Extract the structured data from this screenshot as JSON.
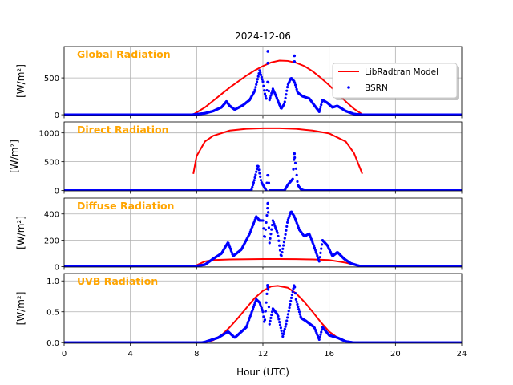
{
  "chart_data": {
    "type": "line",
    "title": "2024-12-06",
    "xlabel": "Hour (UTC)",
    "xlim": [
      0,
      24
    ],
    "xticks": [
      0,
      4,
      8,
      12,
      16,
      20,
      24
    ],
    "grid": true,
    "legend": {
      "entries": [
        "LibRadtran Model",
        "BSRN"
      ],
      "placement": "top-right",
      "panel": 0
    },
    "colors": {
      "model": "#ff0000",
      "bsrn": "#0000ff",
      "label": "#ffa500"
    },
    "panels": [
      {
        "label": "Global Radiation",
        "ylabel": "[W/m²]",
        "ylim": [
          -10,
          925
        ],
        "yticks": [
          0,
          500
        ],
        "model": {
          "x": [
            7.8,
            8.5,
            9,
            9.5,
            10,
            10.5,
            11,
            11.5,
            12,
            12.5,
            13,
            13.5,
            14,
            14.5,
            15,
            15.5,
            16,
            16.5,
            17,
            17.5,
            18
          ],
          "y": [
            5,
            100,
            190,
            280,
            370,
            450,
            530,
            600,
            660,
            710,
            735,
            730,
            705,
            660,
            590,
            500,
            400,
            290,
            180,
            80,
            5
          ]
        },
        "bsrn": {
          "x": [
            0,
            7.7,
            8.5,
            9,
            9.5,
            9.8,
            10,
            10.3,
            10.8,
            11.2,
            11.5,
            11.7,
            11.8,
            12,
            12.1,
            12.2,
            12.3,
            12.4,
            12.6,
            12.8,
            13.1,
            13.3,
            13.5,
            13.7,
            13.9,
            14.1,
            14.4,
            14.8,
            15.2,
            15.4,
            15.6,
            15.9,
            16.2,
            16.5,
            17,
            17.5,
            18,
            24
          ],
          "y": [
            0,
            0,
            20,
            50,
            100,
            180,
            120,
            70,
            130,
            200,
            320,
            500,
            600,
            450,
            300,
            220,
            500,
            200,
            350,
            250,
            80,
            150,
            400,
            500,
            450,
            300,
            250,
            220,
            100,
            40,
            200,
            160,
            100,
            120,
            50,
            10,
            0,
            0
          ],
          "spikes": {
            "x": [
              12.3,
              12.3,
              13.9,
              13.9
            ],
            "y": [
              860,
              700,
              800,
              720
            ]
          }
        }
      },
      {
        "label": "Direct Radiation",
        "ylabel": "[W/m²]",
        "ylim": [
          -5,
          1190
        ],
        "yticks": [
          0,
          500,
          1000
        ],
        "model": {
          "x": [
            7.8,
            8,
            8.5,
            9,
            10,
            11,
            12,
            13,
            14,
            15,
            16,
            17,
            17.5,
            18
          ],
          "y": [
            290,
            600,
            850,
            950,
            1040,
            1070,
            1080,
            1080,
            1070,
            1040,
            990,
            850,
            650,
            290
          ]
        },
        "bsrn": {
          "x": [
            0,
            11.3,
            11.5,
            11.7,
            11.9,
            12.1,
            12.2,
            12.3,
            12.4,
            13.3,
            13.5,
            13.8,
            13.9,
            14,
            14.1,
            14.3,
            14.5,
            24
          ],
          "y": [
            0,
            0,
            200,
            450,
            150,
            50,
            0,
            330,
            0,
            0,
            100,
            200,
            620,
            380,
            100,
            20,
            0,
            0
          ],
          "spikes": {
            "x": [
              11.7,
              13.9
            ],
            "y": [
              420,
              640
            ]
          }
        }
      },
      {
        "label": "Diffuse Radiation",
        "ylabel": "[W/m²]",
        "ylim": [
          -3,
          520
        ],
        "yticks": [
          0,
          200,
          400
        ],
        "model": {
          "x": [
            7.8,
            8.5,
            9,
            10,
            12,
            13,
            14,
            15,
            16,
            17,
            17.5,
            18
          ],
          "y": [
            0,
            40,
            50,
            55,
            58,
            58,
            57,
            55,
            50,
            30,
            15,
            0
          ]
        },
        "bsrn": {
          "x": [
            0,
            7.7,
            8.5,
            9,
            9.5,
            9.9,
            10.2,
            10.7,
            11.2,
            11.6,
            11.8,
            12,
            12.1,
            12.3,
            12.4,
            12.6,
            12.9,
            13.1,
            13.3,
            13.5,
            13.7,
            13.9,
            14.2,
            14.5,
            14.8,
            15.1,
            15.4,
            15.6,
            15.9,
            16.2,
            16.5,
            16.9,
            17.3,
            17.7,
            18,
            24
          ],
          "y": [
            0,
            0,
            15,
            60,
            100,
            185,
            80,
            130,
            250,
            380,
            350,
            350,
            200,
            470,
            180,
            350,
            250,
            70,
            200,
            350,
            420,
            380,
            280,
            230,
            250,
            150,
            40,
            200,
            160,
            80,
            110,
            60,
            25,
            10,
            0,
            0
          ],
          "spikes": {
            "x": [
              12.3
            ],
            "y": [
              480
            ]
          }
        }
      },
      {
        "label": "UVB Radiation",
        "ylabel": "[W/m²]",
        "ylim": [
          -0.01,
          1.12
        ],
        "yticks": [
          0.0,
          0.5,
          1.0
        ],
        "model": {
          "x": [
            8.5,
            9,
            9.5,
            10,
            10.5,
            11,
            11.5,
            12,
            12.5,
            12.9,
            13.5,
            14,
            14.5,
            15,
            15.5,
            16,
            16.5,
            17,
            17.5
          ],
          "y": [
            0,
            0.04,
            0.12,
            0.25,
            0.4,
            0.56,
            0.72,
            0.84,
            0.91,
            0.92,
            0.89,
            0.8,
            0.66,
            0.5,
            0.33,
            0.18,
            0.08,
            0.02,
            0
          ]
        },
        "bsrn": {
          "x": [
            0,
            8.3,
            8.5,
            9.3,
            9.9,
            10.3,
            11,
            11.6,
            11.8,
            12,
            12.1,
            12.3,
            12.4,
            12.6,
            12.9,
            13.2,
            13.4,
            13.7,
            13.9,
            14,
            14.3,
            14.6,
            15.1,
            15.4,
            15.6,
            16,
            16.5,
            17,
            17.5,
            24
          ],
          "y": [
            0,
            0,
            0.01,
            0.08,
            0.18,
            0.08,
            0.25,
            0.7,
            0.65,
            0.5,
            0.3,
            1.0,
            0.3,
            0.55,
            0.45,
            0.1,
            0.3,
            0.7,
            0.95,
            0.7,
            0.4,
            0.35,
            0.25,
            0.05,
            0.25,
            0.12,
            0.08,
            0.02,
            0,
            0
          ],
          "spikes": {
            "x": [
              12.3
            ],
            "y": [
              0.9
            ]
          }
        }
      }
    ]
  }
}
